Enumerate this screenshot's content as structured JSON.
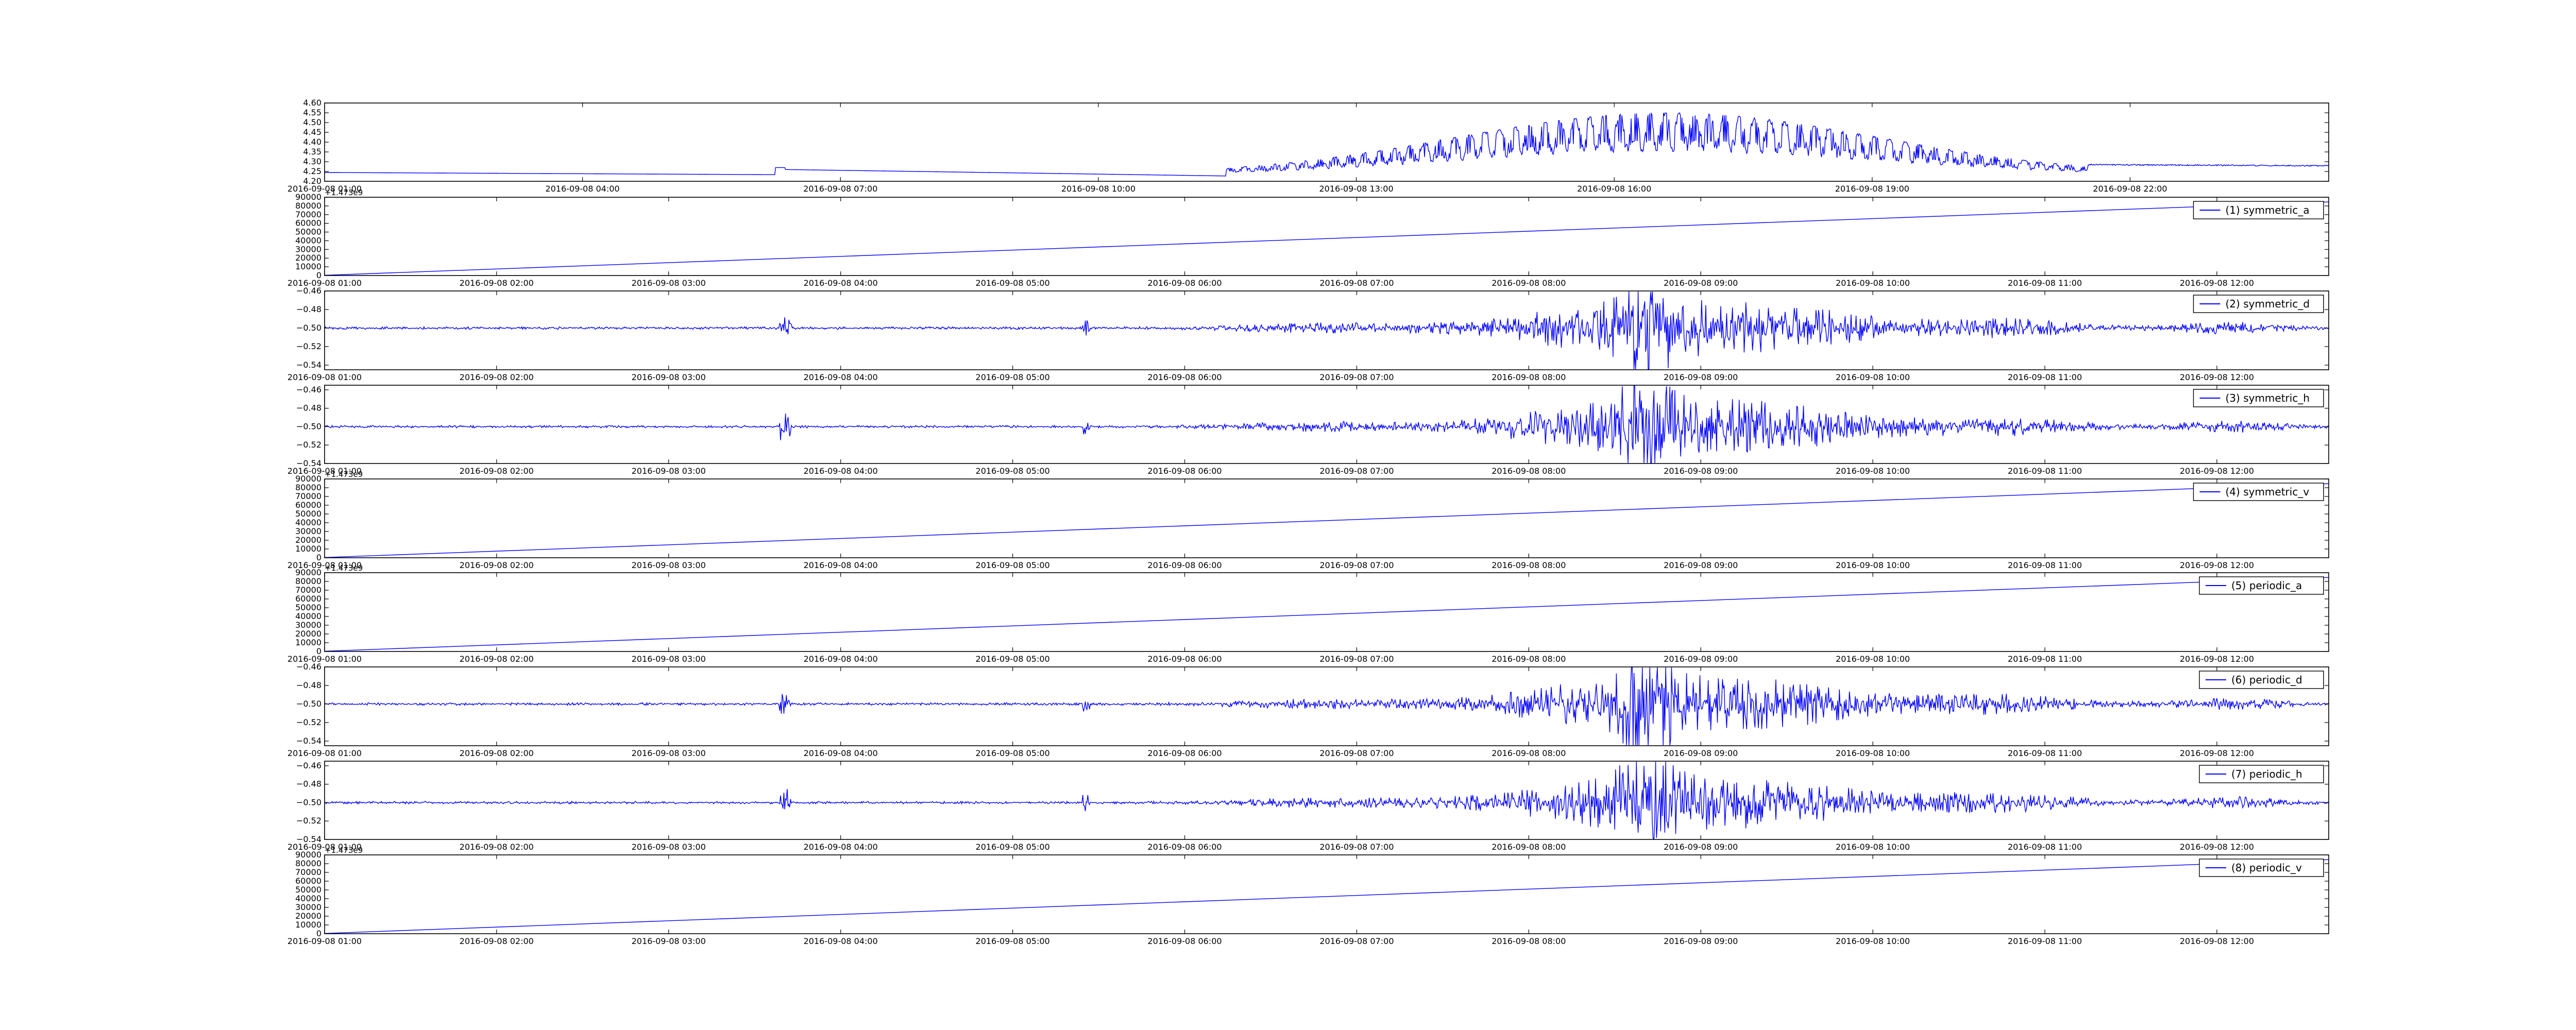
{
  "chart_data": [
    {
      "type": "line",
      "title": "",
      "xlabel": "",
      "ylabel": "",
      "series_name": "",
      "legend_position": "none",
      "line_color": "#0000ff",
      "shape": "signal-slow",
      "x_tick_labels": [
        "2016-09-08 04:00",
        "2016-09-08 07:00",
        "2016-09-08 10:00",
        "2016-09-08 13:00",
        "2016-09-08 16:00",
        "2016-09-08 19:00",
        "2016-09-08 22:00"
      ],
      "x_first_label": "2016-09-08 01:00",
      "y_tick_labels": [
        "4.20",
        "4.25",
        "4.30",
        "4.35",
        "4.40",
        "4.45",
        "4.50",
        "4.55",
        "4.60"
      ],
      "ylim": [
        4.2,
        4.6
      ],
      "y_offset_label": ""
    },
    {
      "type": "line",
      "series_name": "(1) symmetric_a",
      "legend_position": "upper-right",
      "line_color": "#0000ff",
      "shape": "ramp",
      "x_tick_labels": [
        "2016-09-08 01:00",
        "2016-09-08 02:00",
        "2016-09-08 03:00",
        "2016-09-08 04:00",
        "2016-09-08 05:00",
        "2016-09-08 06:00",
        "2016-09-08 07:00",
        "2016-09-08 08:00",
        "2016-09-08 09:00",
        "2016-09-08 10:00",
        "2016-09-08 11:00",
        "2016-09-08 12:00"
      ],
      "y_tick_labels": [
        "0",
        "10000",
        "20000",
        "30000",
        "40000",
        "50000",
        "60000",
        "70000",
        "80000",
        "90000"
      ],
      "ylim": [
        0,
        90000
      ],
      "y_offset_label": "+1.473e9"
    },
    {
      "type": "line",
      "series_name": "(2) symmetric_d",
      "legend_position": "upper-right",
      "line_color": "#0000ff",
      "shape": "noise",
      "x_tick_labels": [
        "2016-09-08 01:00",
        "2016-09-08 02:00",
        "2016-09-08 03:00",
        "2016-09-08 04:00",
        "2016-09-08 05:00",
        "2016-09-08 06:00",
        "2016-09-08 07:00",
        "2016-09-08 08:00",
        "2016-09-08 09:00",
        "2016-09-08 10:00",
        "2016-09-08 11:00",
        "2016-09-08 12:00"
      ],
      "y_tick_labels": [
        "−0.54",
        "−0.52",
        "−0.50",
        "−0.48",
        "−0.46"
      ],
      "ylim": [
        -0.545,
        -0.46
      ],
      "y_offset_label": ""
    },
    {
      "type": "line",
      "series_name": "(3) symmetric_h",
      "legend_position": "upper-right",
      "line_color": "#0000ff",
      "shape": "noise",
      "x_tick_labels": [
        "2016-09-08 01:00",
        "2016-09-08 02:00",
        "2016-09-08 03:00",
        "2016-09-08 04:00",
        "2016-09-08 05:00",
        "2016-09-08 06:00",
        "2016-09-08 07:00",
        "2016-09-08 08:00",
        "2016-09-08 09:00",
        "2016-09-08 10:00",
        "2016-09-08 11:00",
        "2016-09-08 12:00"
      ],
      "y_tick_labels": [
        "−0.54",
        "−0.52",
        "−0.50",
        "−0.48",
        "−0.46"
      ],
      "ylim": [
        -0.54,
        -0.455
      ],
      "y_offset_label": ""
    },
    {
      "type": "line",
      "series_name": "(4) symmetric_v",
      "legend_position": "upper-right",
      "line_color": "#0000ff",
      "shape": "ramp",
      "x_tick_labels": [
        "2016-09-08 01:00",
        "2016-09-08 02:00",
        "2016-09-08 03:00",
        "2016-09-08 04:00",
        "2016-09-08 05:00",
        "2016-09-08 06:00",
        "2016-09-08 07:00",
        "2016-09-08 08:00",
        "2016-09-08 09:00",
        "2016-09-08 10:00",
        "2016-09-08 11:00",
        "2016-09-08 12:00"
      ],
      "y_tick_labels": [
        "0",
        "10000",
        "20000",
        "30000",
        "40000",
        "50000",
        "60000",
        "70000",
        "80000",
        "90000"
      ],
      "ylim": [
        0,
        90000
      ],
      "y_offset_label": "+1.473e9"
    },
    {
      "type": "line",
      "series_name": "(5) periodic_a",
      "legend_position": "upper-right",
      "line_color": "#0000ff",
      "shape": "ramp",
      "x_tick_labels": [
        "2016-09-08 01:00",
        "2016-09-08 02:00",
        "2016-09-08 03:00",
        "2016-09-08 04:00",
        "2016-09-08 05:00",
        "2016-09-08 06:00",
        "2016-09-08 07:00",
        "2016-09-08 08:00",
        "2016-09-08 09:00",
        "2016-09-08 10:00",
        "2016-09-08 11:00",
        "2016-09-08 12:00"
      ],
      "y_tick_labels": [
        "0",
        "10000",
        "20000",
        "30000",
        "40000",
        "50000",
        "60000",
        "70000",
        "80000",
        "90000"
      ],
      "ylim": [
        0,
        90000
      ],
      "y_offset_label": "+1.473e9"
    },
    {
      "type": "line",
      "series_name": "(6) periodic_d",
      "legend_position": "upper-right",
      "line_color": "#0000ff",
      "shape": "noise",
      "x_tick_labels": [
        "2016-09-08 01:00",
        "2016-09-08 02:00",
        "2016-09-08 03:00",
        "2016-09-08 04:00",
        "2016-09-08 05:00",
        "2016-09-08 06:00",
        "2016-09-08 07:00",
        "2016-09-08 08:00",
        "2016-09-08 09:00",
        "2016-09-08 10:00",
        "2016-09-08 11:00",
        "2016-09-08 12:00"
      ],
      "y_tick_labels": [
        "−0.54",
        "−0.52",
        "−0.50",
        "−0.48",
        "−0.46"
      ],
      "ylim": [
        -0.545,
        -0.46
      ],
      "y_offset_label": ""
    },
    {
      "type": "line",
      "series_name": "(7) periodic_h",
      "legend_position": "upper-right",
      "line_color": "#0000ff",
      "shape": "noise",
      "x_tick_labels": [
        "2016-09-08 01:00",
        "2016-09-08 02:00",
        "2016-09-08 03:00",
        "2016-09-08 04:00",
        "2016-09-08 05:00",
        "2016-09-08 06:00",
        "2016-09-08 07:00",
        "2016-09-08 08:00",
        "2016-09-08 09:00",
        "2016-09-08 10:00",
        "2016-09-08 11:00",
        "2016-09-08 12:00"
      ],
      "y_tick_labels": [
        "−0.54",
        "−0.52",
        "−0.50",
        "−0.48",
        "−0.46"
      ],
      "ylim": [
        -0.54,
        -0.455
      ],
      "y_offset_label": ""
    },
    {
      "type": "line",
      "series_name": "(8) periodic_v",
      "legend_position": "upper-right",
      "line_color": "#0000ff",
      "shape": "ramp",
      "x_tick_labels": [
        "2016-09-08 01:00",
        "2016-09-08 02:00",
        "2016-09-08 03:00",
        "2016-09-08 04:00",
        "2016-09-08 05:00",
        "2016-09-08 06:00",
        "2016-09-08 07:00",
        "2016-09-08 08:00",
        "2016-09-08 09:00",
        "2016-09-08 10:00",
        "2016-09-08 11:00",
        "2016-09-08 12:00"
      ],
      "y_tick_labels": [
        "0",
        "10000",
        "20000",
        "30000",
        "40000",
        "50000",
        "60000",
        "70000",
        "80000",
        "90000"
      ],
      "ylim": [
        0,
        90000
      ],
      "y_offset_label": "+1.473e9"
    }
  ]
}
